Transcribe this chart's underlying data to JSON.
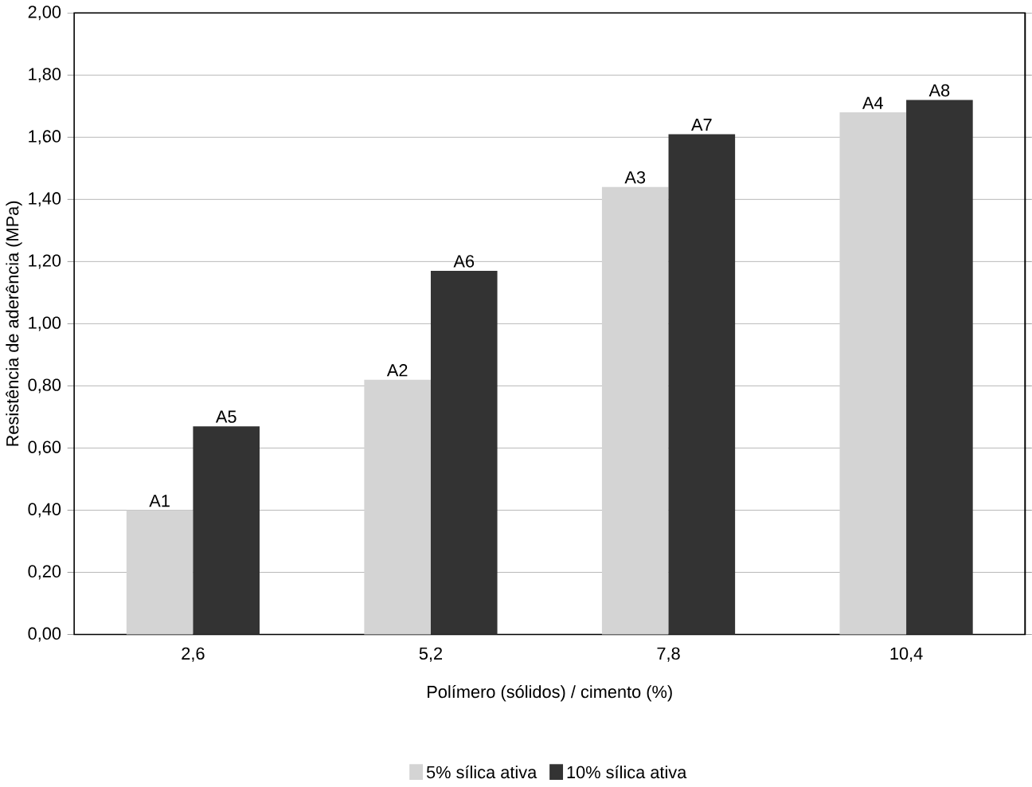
{
  "chart_data": {
    "type": "bar",
    "xlabel": "Polímero (sólidos) / cimento (%)",
    "ylabel": "Resistência de aderência (MPa)",
    "categories": [
      "2,6",
      "5,2",
      "7,8",
      "10,4"
    ],
    "series": [
      {
        "name": "5% sílica ativa",
        "color": "#d4d4d4",
        "values": [
          0.4,
          0.82,
          1.44,
          1.68
        ]
      },
      {
        "name": "10% sílica ativa",
        "color": "#333333",
        "values": [
          0.67,
          1.17,
          1.61,
          1.72
        ]
      }
    ],
    "ylim": [
      0,
      2
    ],
    "yticks": [
      {
        "value": 0,
        "label": "0,00"
      },
      {
        "value": 0.2,
        "label": "0,20"
      },
      {
        "value": 0.4,
        "label": "0,40"
      },
      {
        "value": 0.6,
        "label": "0,60"
      },
      {
        "value": 0.8,
        "label": "0,80"
      },
      {
        "value": 1.0,
        "label": "1,00"
      },
      {
        "value": 1.2,
        "label": "1,20"
      },
      {
        "value": 1.4,
        "label": "1,40"
      },
      {
        "value": 1.6,
        "label": "1,60"
      },
      {
        "value": 1.8,
        "label": "1,80"
      },
      {
        "value": 2.0,
        "label": "2,00"
      }
    ],
    "annotations": [
      {
        "text": "A1",
        "x": "2,6",
        "y": 0.4
      },
      {
        "text": "A2",
        "x": "5,2",
        "y": 0.82
      },
      {
        "text": "A3",
        "x": "7,8",
        "y": 1.44
      },
      {
        "text": "A4",
        "x": "10,4",
        "y": 1.68
      },
      {
        "text": "A5",
        "x": "2,6",
        "y": 0.67
      },
      {
        "text": "A6",
        "x": "5,2",
        "y": 1.17
      },
      {
        "text": "A7",
        "x": "7,8",
        "y": 1.61
      },
      {
        "text": "A8",
        "x": "10,4",
        "y": 1.72
      }
    ],
    "grid": "y",
    "legend": "bottom"
  }
}
